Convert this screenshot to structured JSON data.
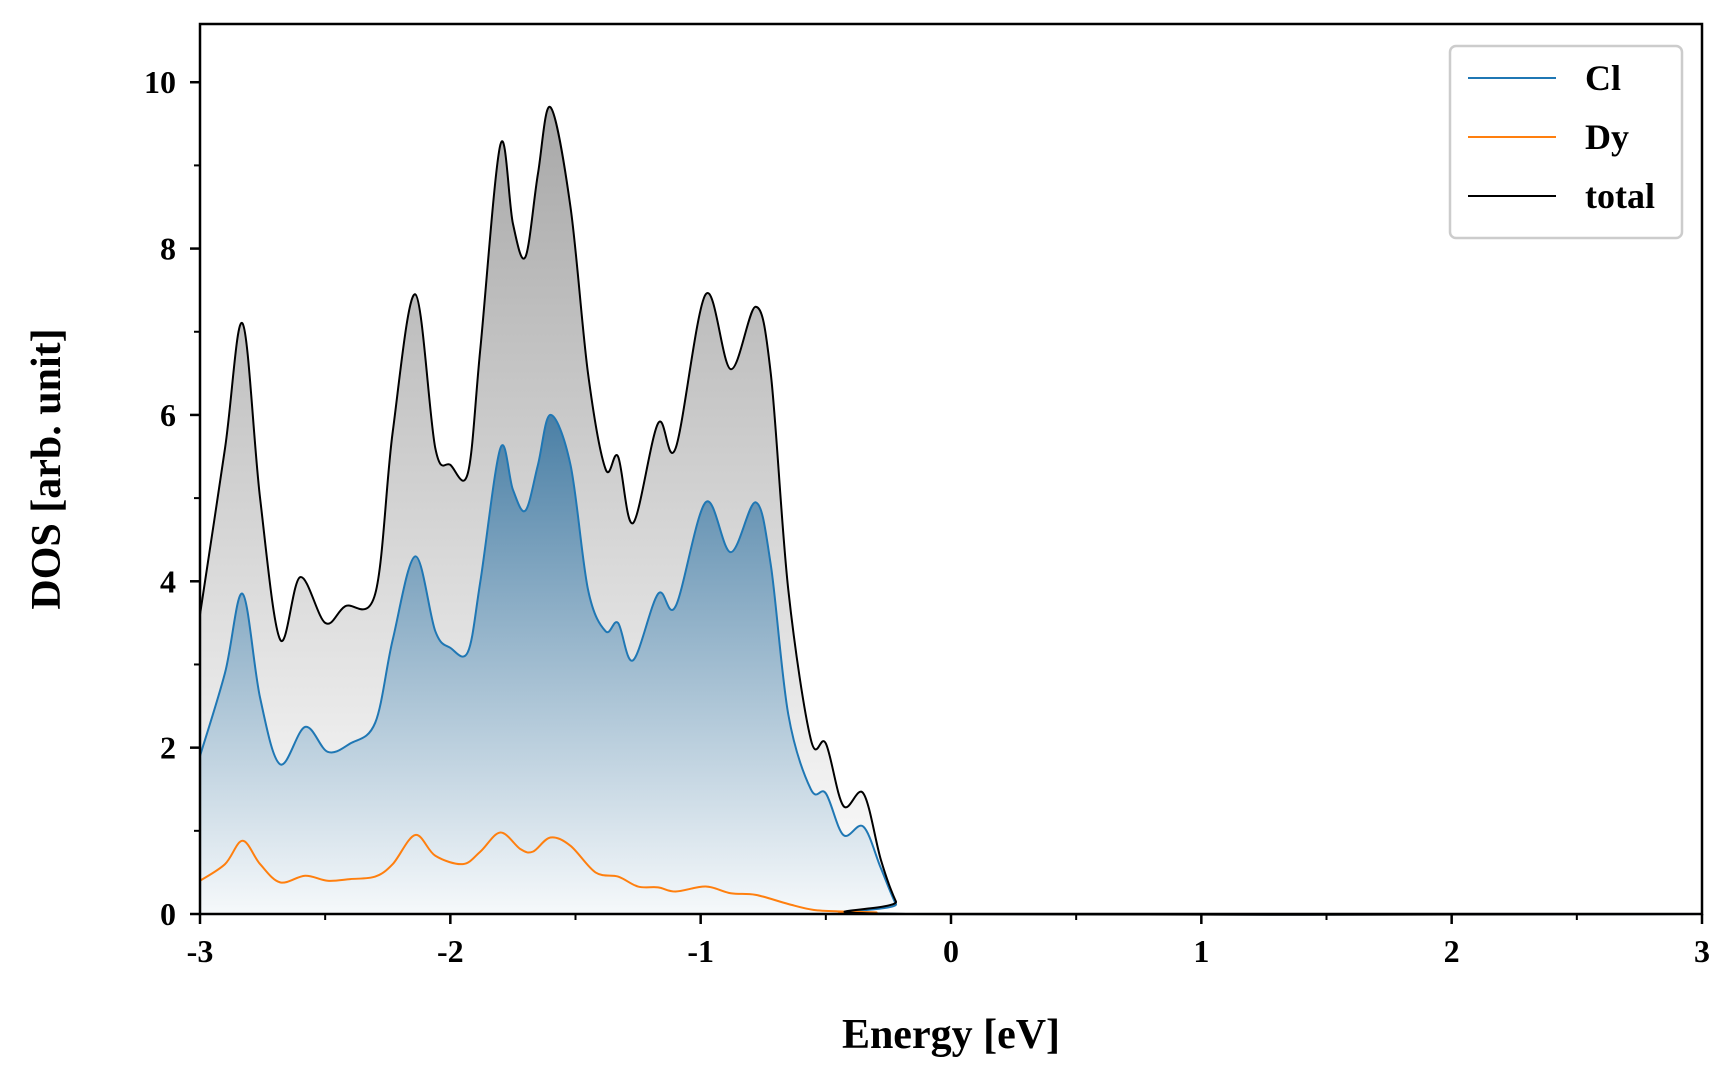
{
  "chart_data": {
    "type": "area",
    "title": "",
    "xlabel": "Energy [eV]",
    "ylabel": "DOS [arb. unit]",
    "xlim": [
      -3,
      3
    ],
    "ylim": [
      0,
      10.7
    ],
    "x_major_ticks": [
      -3,
      -2,
      -1,
      0,
      1,
      2,
      3
    ],
    "x_minor_ticks": [
      -2.5,
      -1.5,
      -0.5,
      0.5,
      1.5,
      2.5
    ],
    "y_major_ticks": [
      0,
      2,
      4,
      6,
      8,
      10
    ],
    "y_minor_ticks": [
      1,
      3,
      5,
      7,
      9
    ],
    "x_tick_labels": [
      "-3",
      "-2",
      "-1",
      "0",
      "1",
      "2",
      "3"
    ],
    "y_tick_labels": [
      "0",
      "2",
      "4",
      "6",
      "8",
      "10"
    ],
    "grid": false,
    "legend_position": "top-right",
    "series": [
      {
        "name": "Cl",
        "color": "#1f77b4",
        "points": [
          [
            -3.0,
            1.9
          ],
          [
            -2.9,
            2.9
          ],
          [
            -2.83,
            3.85
          ],
          [
            -2.76,
            2.6
          ],
          [
            -2.68,
            1.8
          ],
          [
            -2.58,
            2.25
          ],
          [
            -2.49,
            1.95
          ],
          [
            -2.4,
            2.05
          ],
          [
            -2.3,
            2.3
          ],
          [
            -2.23,
            3.3
          ],
          [
            -2.14,
            4.3
          ],
          [
            -2.06,
            3.4
          ],
          [
            -2.0,
            3.2
          ],
          [
            -1.93,
            3.15
          ],
          [
            -1.88,
            4.0
          ],
          [
            -1.8,
            5.6
          ],
          [
            -1.75,
            5.1
          ],
          [
            -1.7,
            4.85
          ],
          [
            -1.65,
            5.4
          ],
          [
            -1.6,
            6.0
          ],
          [
            -1.52,
            5.4
          ],
          [
            -1.45,
            3.9
          ],
          [
            -1.38,
            3.4
          ],
          [
            -1.33,
            3.5
          ],
          [
            -1.27,
            3.05
          ],
          [
            -1.17,
            3.85
          ],
          [
            -1.1,
            3.7
          ],
          [
            -0.98,
            4.95
          ],
          [
            -0.88,
            4.35
          ],
          [
            -0.78,
            4.95
          ],
          [
            -0.72,
            4.2
          ],
          [
            -0.65,
            2.4
          ],
          [
            -0.56,
            1.5
          ],
          [
            -0.5,
            1.45
          ],
          [
            -0.43,
            0.95
          ],
          [
            -0.35,
            1.05
          ],
          [
            -0.28,
            0.55
          ],
          [
            -0.22,
            0.12
          ],
          [
            -0.18,
            0.0
          ],
          [
            3.0,
            0.0
          ]
        ]
      },
      {
        "name": "Dy",
        "color": "#ff7f0e",
        "points": [
          [
            -3.0,
            0.4
          ],
          [
            -2.9,
            0.6
          ],
          [
            -2.83,
            0.88
          ],
          [
            -2.76,
            0.6
          ],
          [
            -2.68,
            0.38
          ],
          [
            -2.58,
            0.46
          ],
          [
            -2.49,
            0.4
          ],
          [
            -2.4,
            0.42
          ],
          [
            -2.3,
            0.45
          ],
          [
            -2.23,
            0.6
          ],
          [
            -2.14,
            0.95
          ],
          [
            -2.06,
            0.7
          ],
          [
            -1.95,
            0.6
          ],
          [
            -1.88,
            0.75
          ],
          [
            -1.8,
            0.98
          ],
          [
            -1.72,
            0.78
          ],
          [
            -1.67,
            0.75
          ],
          [
            -1.6,
            0.92
          ],
          [
            -1.52,
            0.82
          ],
          [
            -1.42,
            0.5
          ],
          [
            -1.33,
            0.45
          ],
          [
            -1.25,
            0.33
          ],
          [
            -1.17,
            0.32
          ],
          [
            -1.1,
            0.27
          ],
          [
            -0.98,
            0.33
          ],
          [
            -0.88,
            0.25
          ],
          [
            -0.78,
            0.23
          ],
          [
            -0.65,
            0.12
          ],
          [
            -0.55,
            0.05
          ],
          [
            -0.43,
            0.03
          ],
          [
            -0.3,
            0.02
          ],
          [
            -0.18,
            0.0
          ],
          [
            3.0,
            0.0
          ]
        ]
      },
      {
        "name": "total",
        "color": "#000000",
        "points": [
          [
            -3.0,
            3.6
          ],
          [
            -2.9,
            5.6
          ],
          [
            -2.83,
            7.1
          ],
          [
            -2.76,
            5.0
          ],
          [
            -2.68,
            3.3
          ],
          [
            -2.6,
            4.05
          ],
          [
            -2.5,
            3.5
          ],
          [
            -2.42,
            3.7
          ],
          [
            -2.3,
            3.85
          ],
          [
            -2.23,
            5.8
          ],
          [
            -2.14,
            7.45
          ],
          [
            -2.06,
            5.6
          ],
          [
            -2.0,
            5.4
          ],
          [
            -1.93,
            5.3
          ],
          [
            -1.88,
            6.8
          ],
          [
            -1.8,
            9.25
          ],
          [
            -1.75,
            8.3
          ],
          [
            -1.7,
            7.9
          ],
          [
            -1.65,
            8.9
          ],
          [
            -1.6,
            9.7
          ],
          [
            -1.52,
            8.5
          ],
          [
            -1.45,
            6.5
          ],
          [
            -1.38,
            5.35
          ],
          [
            -1.33,
            5.5
          ],
          [
            -1.27,
            4.7
          ],
          [
            -1.17,
            5.9
          ],
          [
            -1.1,
            5.6
          ],
          [
            -0.98,
            7.45
          ],
          [
            -0.88,
            6.55
          ],
          [
            -0.78,
            7.3
          ],
          [
            -0.72,
            6.5
          ],
          [
            -0.65,
            3.9
          ],
          [
            -0.56,
            2.1
          ],
          [
            -0.5,
            2.05
          ],
          [
            -0.43,
            1.3
          ],
          [
            -0.35,
            1.45
          ],
          [
            -0.28,
            0.65
          ],
          [
            -0.22,
            0.15
          ],
          [
            -0.18,
            0.0
          ],
          [
            3.0,
            0.0
          ]
        ]
      }
    ]
  }
}
